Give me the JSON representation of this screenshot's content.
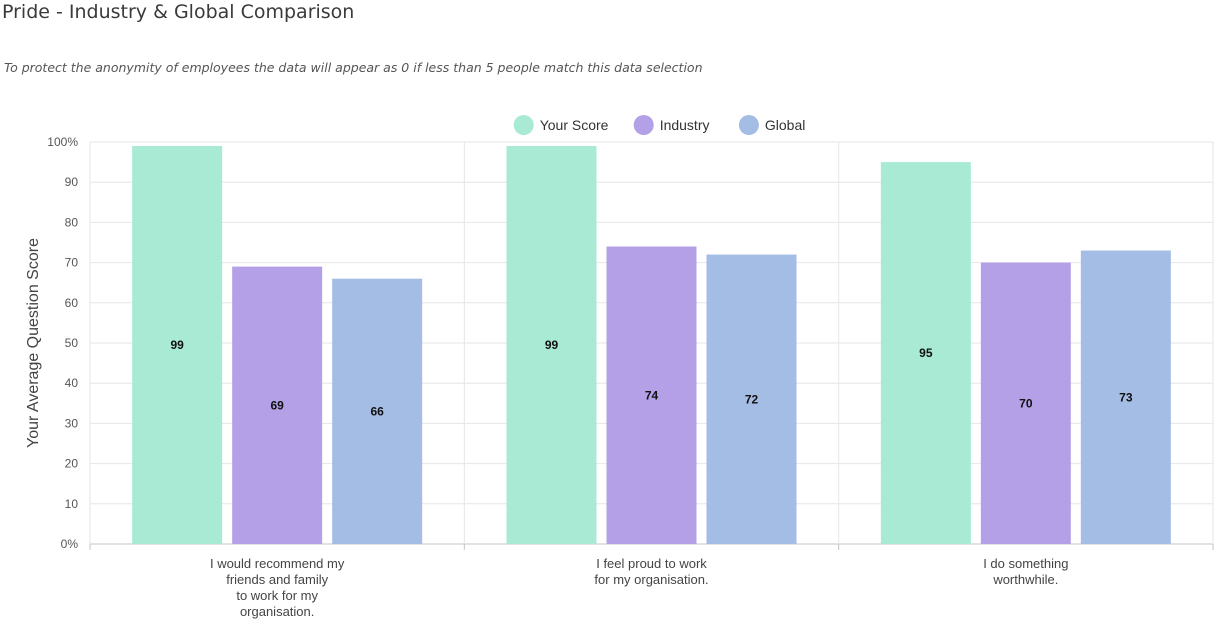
{
  "page": {
    "title": "Pride - Industry & Global Comparison",
    "subtitle": "To protect the anonymity of employees the data will appear as 0 if less than 5 people match this data selection"
  },
  "chart_data": {
    "type": "bar",
    "title": "Pride - Industry & Global Comparison",
    "xlabel": "",
    "ylabel": "Your Average Question Score",
    "ylim": [
      0,
      100
    ],
    "yticks": [
      "0%",
      "10",
      "20",
      "30",
      "40",
      "50",
      "60",
      "70",
      "80",
      "90",
      "100%"
    ],
    "grid": true,
    "legend_position": "top-center",
    "categories": [
      [
        "I would recommend my",
        "friends and family",
        "to work for my",
        "organisation."
      ],
      [
        "I feel proud to work",
        "for my organisation."
      ],
      [
        "I do something",
        "worthwhile."
      ]
    ],
    "series": [
      {
        "name": "Your Score",
        "color": "#a8ead3",
        "values": [
          99,
          99,
          95
        ]
      },
      {
        "name": "Industry",
        "color": "#b3a0e6",
        "values": [
          69,
          74,
          70
        ]
      },
      {
        "name": "Global",
        "color": "#a3bde5",
        "values": [
          66,
          72,
          73
        ]
      }
    ]
  }
}
